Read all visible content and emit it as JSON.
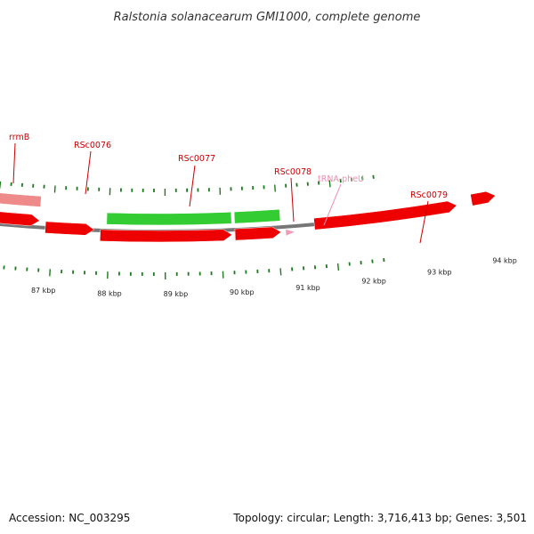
{
  "title": "Ralstonia solanacearum GMI1000, complete genome",
  "footer": {
    "accession": "Accession: NC_003295",
    "summary": "Topology: circular; Length: 3,716,413 bp; Genes: 3,501"
  },
  "colors": {
    "background": "#ffffff",
    "backbone": "#777777",
    "tick": "#1e7a1e",
    "label_red": "#cc0000",
    "label_pink": "#ee8fb0",
    "gene_red": "#ee0000",
    "gene_green": "#33cc33",
    "rrna": "#ee8a8a",
    "trna": "#f29ab8"
  },
  "scale": {
    "unit": "kbp",
    "labels": [
      "87 kbp",
      "88 kbp",
      "89 kbp",
      "90 kbp",
      "91 kbp",
      "92 kbp",
      "93 kbp",
      "94 kbp"
    ]
  },
  "genes": [
    {
      "name": "rrmB",
      "type": "rRNA",
      "strand": "+",
      "track": "outer",
      "color_key": "rrna"
    },
    {
      "name": "RSc0076",
      "type": "CDS",
      "strand": "+",
      "track": "inner",
      "color_key": "gene_red"
    },
    {
      "name": "RSc0077",
      "type": "CDS",
      "strand": "-",
      "track": "outer",
      "color_key": "gene_green"
    },
    {
      "name": "RSc0078",
      "type": "CDS",
      "strand": "-",
      "track": "outer",
      "color_key": "gene_green"
    },
    {
      "name": "tRNA-pheU",
      "type": "tRNA",
      "strand": "+",
      "track": "inner",
      "color_key": "trna"
    },
    {
      "name": "RSc0079",
      "type": "CDS",
      "strand": "+",
      "track": "inner",
      "color_key": "gene_red"
    }
  ],
  "unlabeled_features": [
    {
      "type": "CDS",
      "strand": "+",
      "track": "inner",
      "color_key": "gene_red"
    },
    {
      "type": "CDS",
      "strand": "+",
      "track": "inner",
      "color_key": "gene_red"
    },
    {
      "type": "CDS",
      "strand": "+",
      "track": "inner",
      "color_key": "gene_red"
    },
    {
      "type": "CDS",
      "strand": "+",
      "track": "inner",
      "color_key": "gene_red"
    }
  ]
}
